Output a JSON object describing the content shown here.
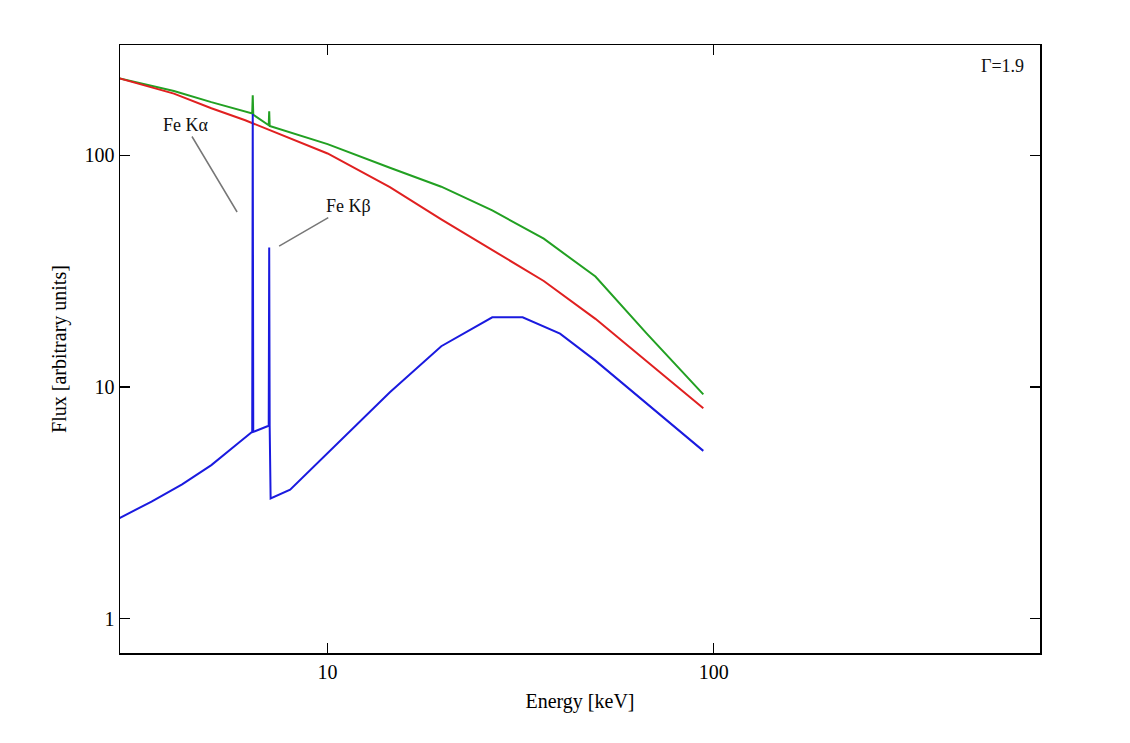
{
  "chart_data": {
    "type": "line",
    "x_label": "Energy [keV]",
    "y_label": "Flux [arbitrary units]",
    "log": true,
    "grid": false,
    "xlim": [
      2.9,
      700
    ],
    "xticks": [
      10,
      100
    ],
    "ylim": [
      0.71,
      300
    ],
    "yticks": [
      1,
      10,
      100
    ],
    "series": [
      {
        "color": "#22a022",
        "x": [
          2.87,
          4,
          5,
          6.12,
          6.38,
          6.4,
          6.42,
          7.04,
          7.06,
          7.08,
          10,
          14.5,
          19.7,
          26.7,
          36.3,
          49.4,
          67.1,
          94
        ],
        "values": [
          216,
          190,
          170,
          155,
          152,
          182,
          150,
          135,
          155,
          134,
          112,
          88.5,
          73.3,
          57.9,
          43.7,
          30,
          17,
          9.3
        ]
      },
      {
        "color": "#e02020",
        "x": [
          2.87,
          4,
          5,
          6.12,
          10,
          14.5,
          19.7,
          26.7,
          36.3,
          49.4,
          67.1,
          94
        ],
        "values": [
          216,
          185,
          160,
          142,
          102,
          73,
          53,
          39,
          28.7,
          19.7,
          12.9,
          8.1
        ]
      },
      {
        "color": "#1a1adf",
        "x": [
          2.87,
          3.5,
          4.2,
          5,
          5.93,
          6.38,
          6.4,
          6.42,
          7.04,
          7.06,
          7.08,
          7.12,
          8,
          10,
          14.5,
          19.7,
          26.7,
          32,
          40,
          49.4,
          67.1,
          94
        ],
        "values": [
          2.7,
          3.2,
          3.8,
          4.6,
          5.8,
          6.4,
          151,
          6.4,
          6.8,
          40,
          6.8,
          3.3,
          3.6,
          5.2,
          9.5,
          15,
          20,
          20,
          17,
          13,
          8.5,
          5.3
        ]
      }
    ],
    "annotations": [
      {
        "text": "Fe Kα",
        "x": 5.83,
        "y": 57
      },
      {
        "text": "Fe Kβ",
        "x": 7.49,
        "y": 40.6
      },
      {
        "text": "Γ=1.9"
      }
    ]
  }
}
